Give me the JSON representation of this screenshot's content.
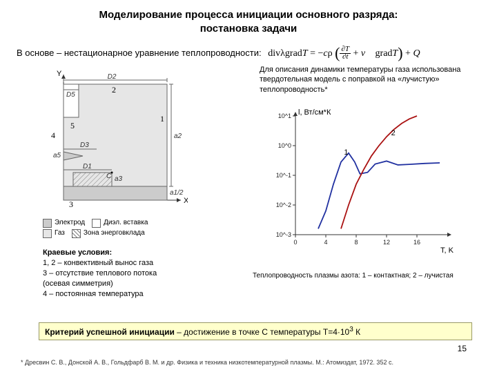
{
  "title_l1": "Моделирование процесса инициации основного разряда:",
  "title_l2": "постановка задачи",
  "eq_prefix": "В основе – нестационарное уравнение теплопроводности:",
  "eq_text": "divλgradT = −cρ (∂T/∂t + v⃗ gradT) + Q",
  "right_note": "Для описания динамики температуры газа использована твердотельная модель с поправкой на «лучистую» теплопроводность*",
  "diagram": {
    "labels": {
      "D1": "D1",
      "D2": "D2",
      "D3": "D3",
      "D5": "D5",
      "a2": "a2",
      "a3": "a3",
      "a5": "a5",
      "a12": "a1/2",
      "C": "C",
      "X": "X",
      "Y": "Y"
    },
    "bn": {
      "b1": "1",
      "b2": "2",
      "b3": "3",
      "b4": "4",
      "b5": "5"
    },
    "colors": {
      "outline": "#666666",
      "electrode": "#cccccc",
      "diel": "#ffffff",
      "gas": "#e6e6e6",
      "energy": "#bdbdbd",
      "hatch": "#808080"
    },
    "legend": {
      "e": "Электрод",
      "d": "Диэл. вставка",
      "g": "Газ",
      "z": "Зона энерговклада"
    }
  },
  "boundary": {
    "head": "Краевые условия:",
    "l1": "1, 2 – конвективный вынос газа",
    "l2": "3 – отсутствие теплового потока",
    "l3": "(осевая симметрия)",
    "l4": "4 – постоянная температура"
  },
  "chart": {
    "yaxis_label": "l, Вт/см*К",
    "xaxis_label": "T, K",
    "colors": {
      "axis": "#333333",
      "curve1": "#2030a0",
      "curve2": "#aa1111",
      "bg": "#ffffff"
    },
    "xlim": [
      0,
      20
    ],
    "ylim": [
      -3,
      1
    ],
    "xticks": [
      0,
      4,
      8,
      12,
      16
    ],
    "yticks": [
      -3,
      -2,
      -1,
      0,
      1
    ],
    "yticklabels": [
      "10^-3",
      "10^-2",
      "10^-1",
      "10^0",
      "10^1"
    ],
    "series1_label": "1",
    "series2_label": "2",
    "series1": [
      [
        3.0,
        -2.8
      ],
      [
        4.0,
        -2.2
      ],
      [
        5.0,
        -1.3
      ],
      [
        6.0,
        -0.55
      ],
      [
        7.0,
        -0.25
      ],
      [
        7.8,
        -0.55
      ],
      [
        8.5,
        -0.95
      ],
      [
        9.5,
        -0.9
      ],
      [
        10.5,
        -0.62
      ],
      [
        12.0,
        -0.52
      ],
      [
        13.5,
        -0.65
      ],
      [
        15.0,
        -0.63
      ],
      [
        17.0,
        -0.6
      ],
      [
        19.0,
        -0.58
      ]
    ],
    "series2": [
      [
        6.0,
        -2.8
      ],
      [
        7.0,
        -2.0
      ],
      [
        8.0,
        -1.3
      ],
      [
        9.0,
        -0.8
      ],
      [
        10.0,
        -0.35
      ],
      [
        11.0,
        0.0
      ],
      [
        12.0,
        0.3
      ],
      [
        13.0,
        0.55
      ],
      [
        14.0,
        0.75
      ],
      [
        15.0,
        0.9
      ],
      [
        16.0,
        1.0
      ]
    ]
  },
  "chart_caption": "Теплопроводность плазмы азота: 1 – контактная; 2 – лучистая",
  "criterion_label": "Критерий успешной инициации",
  "criterion_rest": " – достижение в точке C температуры T=4·10",
  "criterion_sup": "3",
  "criterion_tail": " К",
  "footnote": "* Дресвин С. В., Донской А. В., Гольдфарб В. М. и др. Физика и техника низкотемпературной плазмы. М.: Атомиздат, 1972. 352 с.",
  "pagenum": "15"
}
